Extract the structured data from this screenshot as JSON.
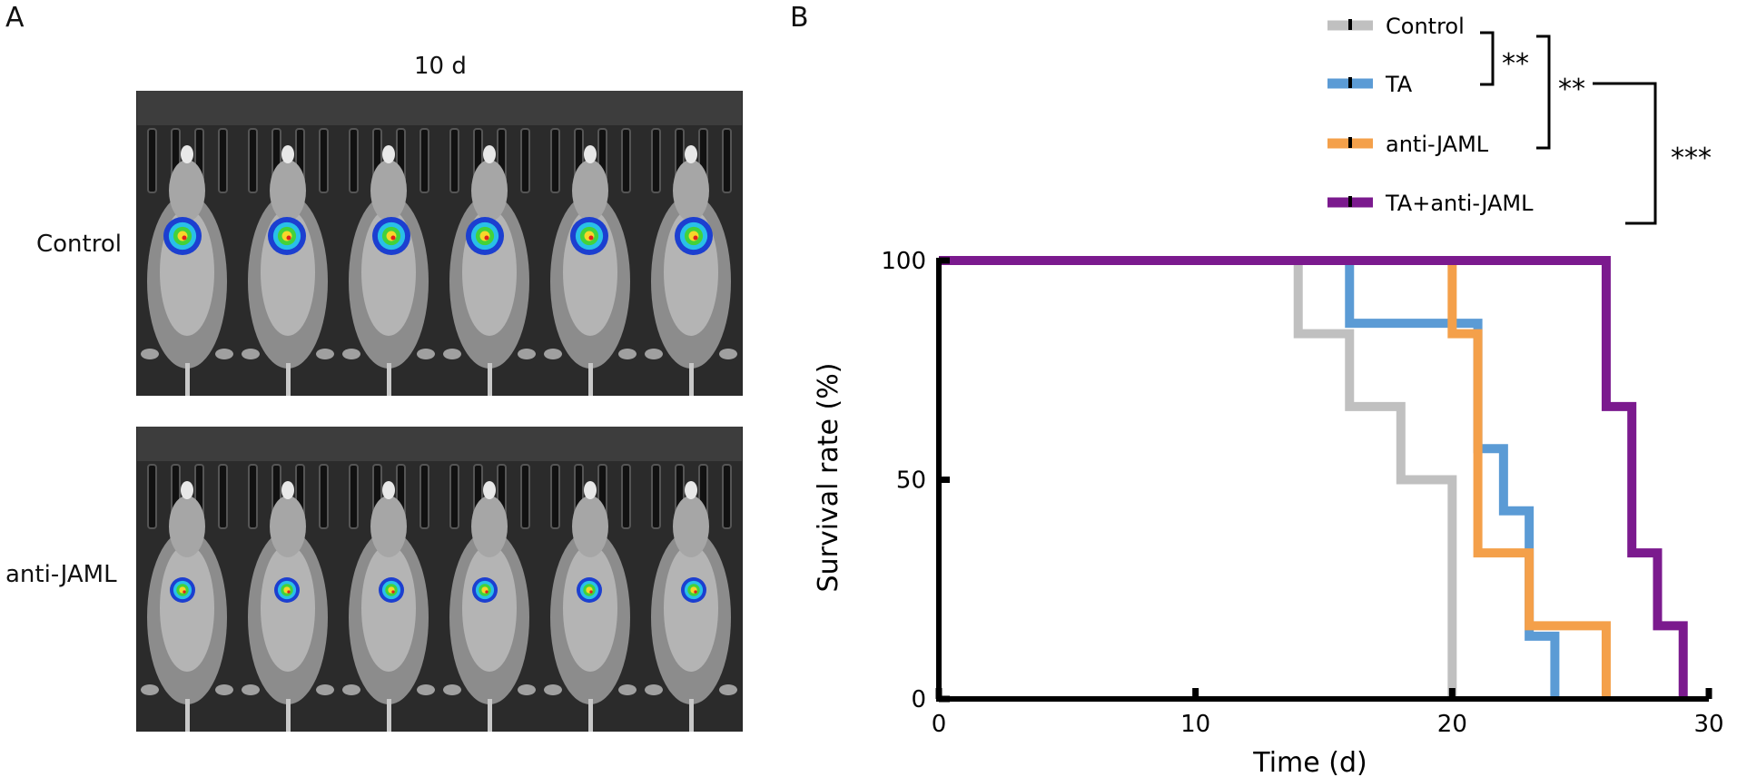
{
  "panels": {
    "a": "A",
    "b": "B"
  },
  "imaging": {
    "timepoint": "10 d",
    "groups": [
      {
        "label": "Control",
        "mice": 6
      },
      {
        "label": "anti-JAML",
        "mice": 6
      }
    ]
  },
  "significance": {
    "pair1": "**",
    "pair2": "**",
    "pair3": "***"
  },
  "colors": {
    "control": "#c0c0c0",
    "ta": "#5b9bd5",
    "anti_jaml": "#f4a04a",
    "ta_anti_jaml": "#7b1a8e"
  },
  "chart_data": {
    "type": "line",
    "step": true,
    "title": "",
    "xlabel": "Time (d)",
    "ylabel": "Survival rate (%)",
    "xlim": [
      0,
      30
    ],
    "ylim": [
      0,
      100
    ],
    "xticks": [
      "0",
      "10",
      "20",
      "30"
    ],
    "yticks": [
      "0",
      "50",
      "100"
    ],
    "legend_position": "top-right",
    "series": [
      {
        "name": "Control",
        "color": "#c0c0c0",
        "x": [
          0,
          14,
          16,
          18,
          20
        ],
        "y": [
          100,
          83.3,
          66.7,
          50,
          0
        ]
      },
      {
        "name": "TA",
        "color": "#5b9bd5",
        "x": [
          0,
          16,
          21,
          22,
          23,
          24
        ],
        "y": [
          100,
          85.7,
          57.1,
          42.9,
          14.3,
          0
        ]
      },
      {
        "name": "anti-JAML",
        "color": "#f4a04a",
        "x": [
          0,
          20,
          21,
          23,
          26
        ],
        "y": [
          100,
          83.3,
          33.3,
          16.7,
          0
        ]
      },
      {
        "name": "TA+anti-JAML",
        "color": "#7b1a8e",
        "x": [
          0,
          26,
          27,
          28,
          29
        ],
        "y": [
          100,
          66.7,
          33.3,
          16.7,
          0
        ]
      }
    ]
  }
}
